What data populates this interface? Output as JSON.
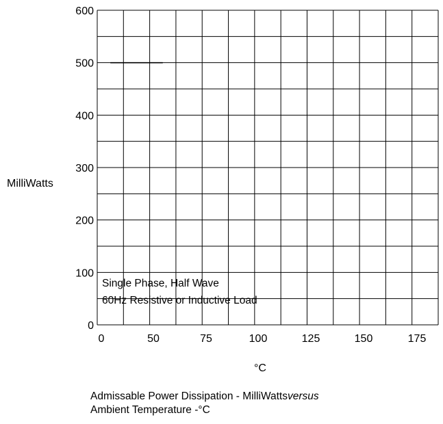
{
  "chart_data": {
    "type": "line",
    "ylabel": "MilliWatts",
    "xlabel": "°C",
    "ylim": [
      0,
      600
    ],
    "y_ticks": [
      "0",
      "100",
      "200",
      "300",
      "400",
      "500",
      "600"
    ],
    "x_ticks": [
      "0",
      "50",
      "75",
      "100",
      "125",
      "150",
      "175"
    ],
    "grid": true,
    "series": [
      {
        "x": [
          0,
          25
        ],
        "y": [
          500,
          500
        ]
      }
    ],
    "annotation_lines": [
      "Single Phase, Half Wave",
      "60Hz Resistive or Inductive Load"
    ]
  },
  "caption": {
    "line1_prefix": "Admissable Power Dissipation  -  MilliWatts",
    "line1_italic": "versus",
    "line2": "Ambient Temperature  -°C"
  }
}
